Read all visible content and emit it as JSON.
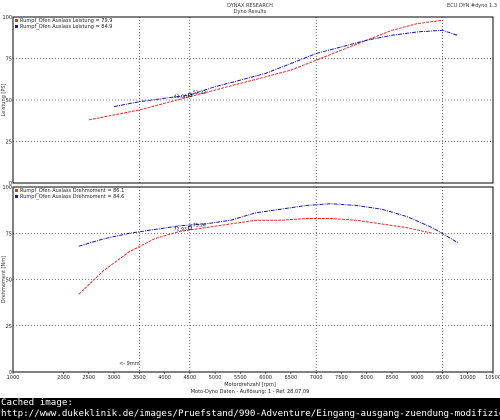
{
  "header": {
    "title": "DYNAX RESEARCH",
    "subtitle": "Dyno Results",
    "top_right": "ECU DYN #dyno 1.3"
  },
  "x_axis": {
    "label": "Motordrehzahl [rpm]",
    "ticks": [
      "1000",
      "2000",
      "2500",
      "3000",
      "3500",
      "4000",
      "4500",
      "5000",
      "5500",
      "6000",
      "6500",
      "7000",
      "7500",
      "8000",
      "8500",
      "9000",
      "9500",
      "10000",
      "10500"
    ],
    "footnote": "Moto-Dyno Daten - Auflösung: 1 - Ref. 28.07.09"
  },
  "annotation": "<- 9mm",
  "colors": {
    "red": "#e03030",
    "blue": "#1a1ab0",
    "grid": "#000000"
  },
  "chart_data": [
    {
      "type": "line",
      "ylabel": "Leistung [PS]",
      "ylim": [
        0,
        100
      ],
      "yticks": [
        "0",
        "25",
        "50",
        "75",
        "100"
      ],
      "legend_position": "top-left",
      "series": [
        {
          "name": "Rumpf_Ofen Auslass Leistung = 79.9",
          "color": "red",
          "x": [
            2500,
            3000,
            3500,
            4000,
            4500,
            5000,
            5500,
            6000,
            6500,
            7000,
            7500,
            8000,
            8500,
            9000,
            9500
          ],
          "y": [
            38,
            41,
            44,
            48,
            52,
            56,
            60,
            64,
            68,
            74,
            80,
            86,
            92,
            96,
            98
          ]
        },
        {
          "name": "Rumpf_Ofen Auslass Leistung = 84.9",
          "color": "blue",
          "x": [
            3000,
            3500,
            4000,
            4500,
            5000,
            5500,
            6000,
            6500,
            7000,
            7500,
            8000,
            8500,
            9000,
            9500,
            9800
          ],
          "y": [
            46,
            49,
            51,
            53,
            58,
            62,
            66,
            72,
            78,
            82,
            86,
            89,
            91,
            92,
            89
          ]
        }
      ],
      "marker": {
        "x": 4500,
        "y": 53,
        "red_label": "43.66",
        "blue_label": "52.33"
      }
    },
    {
      "type": "line",
      "ylabel": "Drehmoment [Nm]",
      "ylim": [
        0,
        100
      ],
      "yticks": [
        "0",
        "25",
        "50",
        "75",
        "100"
      ],
      "legend_position": "top-left",
      "series": [
        {
          "name": "Rumpf_Ofen Auslass Drehmoment = 86.1",
          "color": "red",
          "x": [
            2300,
            2800,
            3300,
            3800,
            4300,
            4800,
            5300,
            5800,
            6300,
            6800,
            7300,
            7800,
            8300,
            8800,
            9300
          ],
          "y": [
            42,
            55,
            65,
            72,
            76,
            78,
            80,
            82,
            82,
            83,
            83,
            82,
            80,
            78,
            75
          ]
        },
        {
          "name": "Rumpf_Ofen Auslass Drehmoment = 84.6",
          "color": "blue",
          "x": [
            2300,
            2800,
            3300,
            3800,
            4300,
            4800,
            5300,
            5800,
            6300,
            6800,
            7300,
            7800,
            8300,
            8800,
            9300,
            9800
          ],
          "y": [
            68,
            72,
            75,
            77,
            79,
            80,
            82,
            86,
            88,
            90,
            91,
            90,
            88,
            84,
            78,
            70
          ]
        }
      ],
      "marker": {
        "x": 4500,
        "y": 78,
        "red_label": "72.93",
        "blue_label": "75.24"
      }
    }
  ],
  "cached": {
    "line1": "Cached image:",
    "line2": "http://www.dukeklinik.de/images/Pruefstand/990-Adventure/Eingang-ausgang-zuendung-modifiziert.jpg"
  }
}
